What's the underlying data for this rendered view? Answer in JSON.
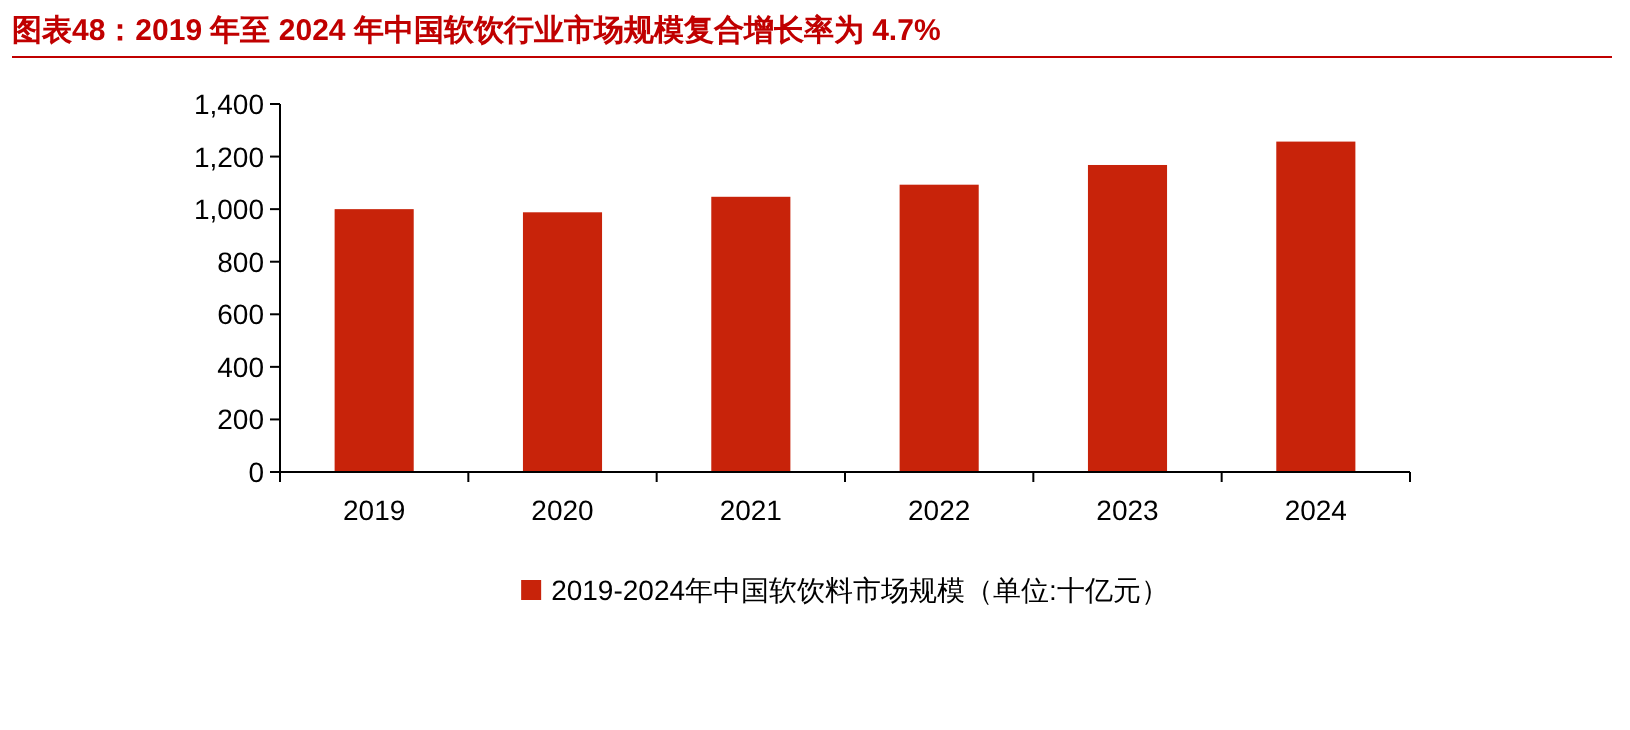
{
  "chart_data": {
    "type": "bar",
    "title": "图表48：2019 年至 2024 年中国软饮行业市场规模复合增长率为 4.7%",
    "categories": [
      "2019",
      "2020",
      "2021",
      "2022",
      "2023",
      "2024"
    ],
    "series": [
      {
        "name": "2019-2024年中国软饮料市场规模（单位:十亿元）",
        "color": "#c8230a",
        "values": [
          1000,
          988,
          1047,
          1093,
          1168,
          1257
        ]
      }
    ],
    "ylim": [
      0,
      1400
    ],
    "yticks": [
      {
        "value": 0,
        "label": "0"
      },
      {
        "value": 200,
        "label": "200"
      },
      {
        "value": 400,
        "label": "400"
      },
      {
        "value": 600,
        "label": "600"
      },
      {
        "value": 800,
        "label": "800"
      },
      {
        "value": 1000,
        "label": "1,000"
      },
      {
        "value": 1200,
        "label": "1,200"
      },
      {
        "value": 1400,
        "label": "1,400"
      }
    ],
    "grid": false,
    "legend": "bottom"
  }
}
